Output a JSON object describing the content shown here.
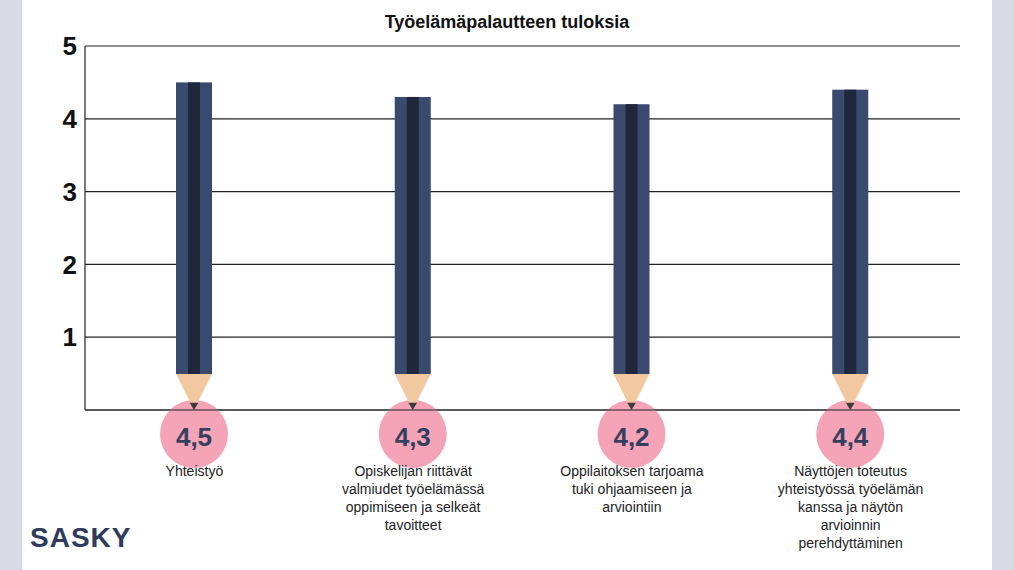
{
  "chart_data": {
    "type": "bar",
    "title": "Työelämäpalautteen tuloksia",
    "logo_text": "SASKY",
    "categories": [
      "Yhteistyö",
      "Opiskelijan riittävät valmiudet työelämässä oppimiseen ja selkeät tavoitteet",
      "Oppilaitoksen tarjoama tuki ohjaamiseen ja arviointiin",
      "Näyttöjen toteutus yhteistyössä työelämän kanssa ja näytön arvioinnin perehdyttäminen"
    ],
    "values": [
      4.5,
      4.3,
      4.2,
      4.4
    ],
    "value_labels": [
      "4,5",
      "4,3",
      "4,2",
      "4,4"
    ],
    "color": "#3a4a6e",
    "ylim": [
      0,
      5
    ],
    "yticks": [
      1,
      2,
      3,
      4,
      5
    ],
    "grid": true,
    "data_labels": true
  }
}
